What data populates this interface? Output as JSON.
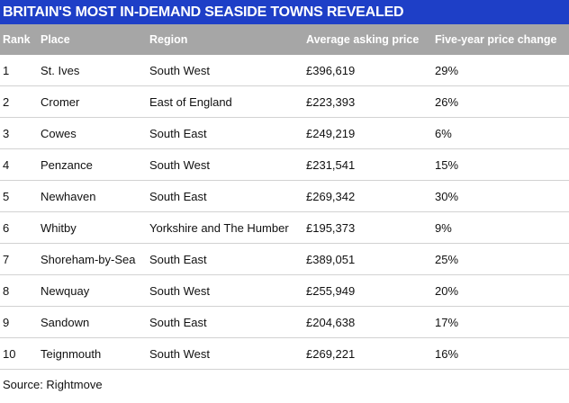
{
  "title": "BRITAIN'S MOST IN-DEMAND SEASIDE TOWNS REVEALED",
  "columns": {
    "rank": "Rank",
    "place": "Place",
    "region": "Region",
    "price": "Average asking price",
    "change": "Five-year price change"
  },
  "rows": [
    {
      "rank": "1",
      "place": "St. Ives",
      "region": "South West",
      "price": "£396,619",
      "change": "29%"
    },
    {
      "rank": "2",
      "place": "Cromer",
      "region": "East of England",
      "price": "£223,393",
      "change": "26%"
    },
    {
      "rank": "3",
      "place": "Cowes",
      "region": "South East",
      "price": "£249,219",
      "change": "6%"
    },
    {
      "rank": "4",
      "place": "Penzance",
      "region": "South West",
      "price": "£231,541",
      "change": "15%"
    },
    {
      "rank": "5",
      "place": "Newhaven",
      "region": "South East",
      "price": "£269,342",
      "change": "30%"
    },
    {
      "rank": "6",
      "place": "Whitby",
      "region": "Yorkshire and The Humber",
      "price": "£195,373",
      "change": "9%"
    },
    {
      "rank": "7",
      "place": "Shoreham-by-Sea",
      "region": "South East",
      "price": "£389,051",
      "change": "25%"
    },
    {
      "rank": "8",
      "place": "Newquay",
      "region": "South West",
      "price": "£255,949",
      "change": "20%"
    },
    {
      "rank": "9",
      "place": "Sandown",
      "region": "South East",
      "price": "£204,638",
      "change": "17%"
    },
    {
      "rank": "10",
      "place": "Teignmouth",
      "region": "South West",
      "price": "£269,221",
      "change": "16%"
    }
  ],
  "source": "Source: Rightmove",
  "colors": {
    "title_background": "#1e3fc7",
    "header_background": "#a6a6a6",
    "row_divider": "#d2d2d2"
  }
}
